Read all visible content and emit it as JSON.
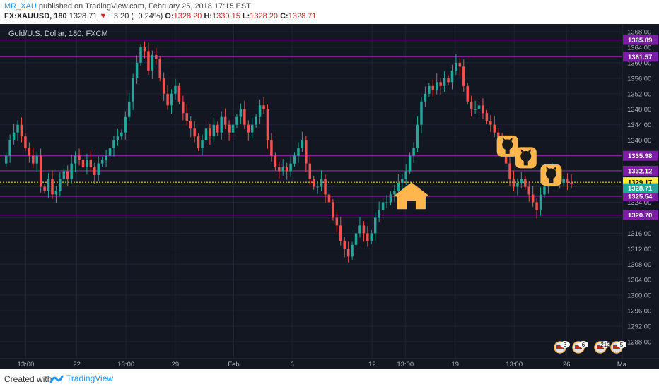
{
  "header": {
    "username": "MR_XAU",
    "published": "published on TradingView.com, February 25, 2018 17:15 EST",
    "symbol": "FX:XAUUSD, 180",
    "last": "1328.71",
    "arrow": "▼",
    "change": "−3.20 (−0.24%)",
    "o_label": "O:",
    "o": "1328.20",
    "h_label": "H:",
    "h": "1330.15",
    "l_label": "L:",
    "l": "1328.20",
    "c_label": "C:",
    "c": "1328.71"
  },
  "footer": {
    "created_with": "Created with",
    "brand": "TradingView"
  },
  "colors": {
    "background": "#131722",
    "up": "#26a69a",
    "down": "#ef5350",
    "level": "#7b1fa2",
    "price": "#ffeb3b",
    "icon": "#ffb74d"
  },
  "chart_data": {
    "type": "candlestick",
    "title": "Gold/U.S. Dollar, 180, FXCM",
    "ylim": [
      1284,
      1370
    ],
    "y_ticks": [
      1288,
      1292,
      1296,
      1300,
      1304,
      1308,
      1312,
      1316,
      1320,
      1324,
      1328,
      1332,
      1336,
      1340,
      1344,
      1348,
      1352,
      1356,
      1360,
      1364,
      1368
    ],
    "y_tick_labels": [
      "1288.00",
      "1292.00",
      "1296.00",
      "1300.00",
      "1304.00",
      "1308.00",
      "1312.00",
      "1316.00",
      "1320.00",
      "1324.00",
      "1328.00",
      "1332.00",
      "1336.00",
      "1340.00",
      "1344.00",
      "1348.00",
      "1352.00",
      "1356.00",
      "1360.00",
      "1364.00",
      "1368.00"
    ],
    "x_ticks": [
      {
        "label": "13:00",
        "t": 0.035
      },
      {
        "label": "22",
        "t": 0.118
      },
      {
        "label": "13:00",
        "t": 0.198
      },
      {
        "label": "29",
        "t": 0.278
      },
      {
        "label": "Feb",
        "t": 0.373
      },
      {
        "label": "6",
        "t": 0.468
      },
      {
        "label": "12",
        "t": 0.598
      },
      {
        "label": "13:00",
        "t": 0.652
      },
      {
        "label": "19",
        "t": 0.733
      },
      {
        "label": "13:00",
        "t": 0.829
      },
      {
        "label": "26",
        "t": 0.914
      },
      {
        "label": "Ma",
        "t": 1.004
      }
    ],
    "levels": [
      {
        "value": 1365.89,
        "label": "1365.89"
      },
      {
        "value": 1361.57,
        "label": "1361.57"
      },
      {
        "value": 1335.98,
        "label": "1335.98"
      },
      {
        "value": 1332.12,
        "label": "1332.12"
      },
      {
        "value": 1325.54,
        "label": "1325.54"
      },
      {
        "value": 1320.7,
        "label": "1320.70"
      }
    ],
    "price_line": {
      "value": 1329.17,
      "label": "1329.17"
    },
    "last_price": {
      "value": 1328.71,
      "label": "1328.71"
    },
    "closes": [
      1336,
      1340,
      1342,
      1344,
      1341,
      1338,
      1336,
      1334,
      1336,
      1328,
      1327,
      1330,
      1326,
      1327,
      1330,
      1332,
      1330,
      1334,
      1336,
      1335,
      1333,
      1335,
      1333,
      1331,
      1334,
      1335,
      1336,
      1338,
      1340,
      1341,
      1342,
      1346,
      1350,
      1356,
      1360,
      1364,
      1363,
      1358,
      1362,
      1361,
      1356,
      1352,
      1349,
      1352,
      1354,
      1350,
      1347,
      1345,
      1343,
      1341,
      1338,
      1340,
      1343,
      1341,
      1344,
      1342,
      1346,
      1344,
      1342,
      1344,
      1346,
      1348,
      1344,
      1342,
      1344,
      1346,
      1349,
      1348,
      1340,
      1336,
      1333,
      1332,
      1333,
      1332,
      1334,
      1336,
      1338,
      1340,
      1334,
      1330,
      1328,
      1328,
      1330,
      1326,
      1324,
      1320,
      1318,
      1314,
      1312,
      1310,
      1313,
      1316,
      1318,
      1316,
      1314,
      1316,
      1320,
      1322,
      1324,
      1324,
      1326,
      1327,
      1329,
      1330,
      1332,
      1336,
      1338,
      1344,
      1350,
      1352,
      1354,
      1353,
      1355,
      1354,
      1356,
      1355,
      1358,
      1360,
      1359,
      1354,
      1350,
      1348,
      1348,
      1349,
      1347,
      1345,
      1344,
      1342,
      1340,
      1338,
      1334,
      1330,
      1328,
      1329,
      1330,
      1328,
      1326,
      1324,
      1322,
      1326,
      1328,
      1330,
      1332,
      1331,
      1329,
      1330,
      1329,
      1328.71
    ]
  },
  "event_badges": [
    "3",
    "6",
    "213",
    "5"
  ],
  "markers": [
    {
      "icon": "house-icon",
      "t": 0.662,
      "price": 1325.5
    },
    {
      "icon": "github-icon",
      "t": 0.818,
      "price": 1338.5
    },
    {
      "icon": "github-icon",
      "t": 0.848,
      "price": 1335.5
    },
    {
      "icon": "github-icon",
      "t": 0.889,
      "price": 1331
    }
  ]
}
